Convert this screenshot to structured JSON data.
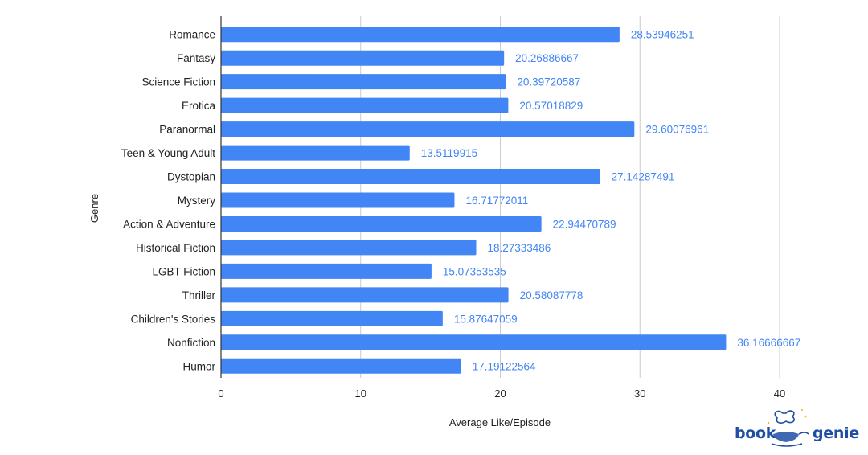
{
  "chart_data": {
    "type": "bar",
    "orientation": "horizontal",
    "categories": [
      "Romance",
      "Fantasy",
      "Science Fiction",
      "Erotica",
      "Paranormal",
      "Teen & Young Adult",
      "Dystopian",
      "Mystery",
      "Action & Adventure",
      "Historical Fiction",
      "LGBT Fiction",
      "Thriller",
      "Children's Stories",
      "Nonfiction",
      "Humor"
    ],
    "values": [
      28.53946251,
      20.26886667,
      20.39720587,
      20.57018829,
      29.60076961,
      13.5119915,
      27.14287491,
      16.71772011,
      22.94470789,
      18.27333486,
      15.07353535,
      20.58087778,
      15.87647059,
      36.16666667,
      17.19122564
    ],
    "value_labels": [
      "28.53946251",
      "20.26886667",
      "20.39720587",
      "20.57018829",
      "29.60076961",
      "13.5119915",
      "27.14287491",
      "16.71772011",
      "22.94470789",
      "18.27333486",
      "15.07353535",
      "20.58087778",
      "15.87647059",
      "36.16666667",
      "17.19122564"
    ],
    "xlabel": "Average Like/Episode",
    "ylabel": "Genre",
    "xlim": [
      0,
      40
    ],
    "xticks": [
      0,
      10,
      20,
      30,
      40
    ],
    "grid": true,
    "legend": "none",
    "colors": {
      "bar": "#4285f4",
      "value_label": "#4285f4",
      "grid": "#cccccc",
      "axis": "#333333"
    }
  },
  "logo": {
    "text_left": "book",
    "text_right": "genie",
    "color": "#1f4fa3"
  }
}
